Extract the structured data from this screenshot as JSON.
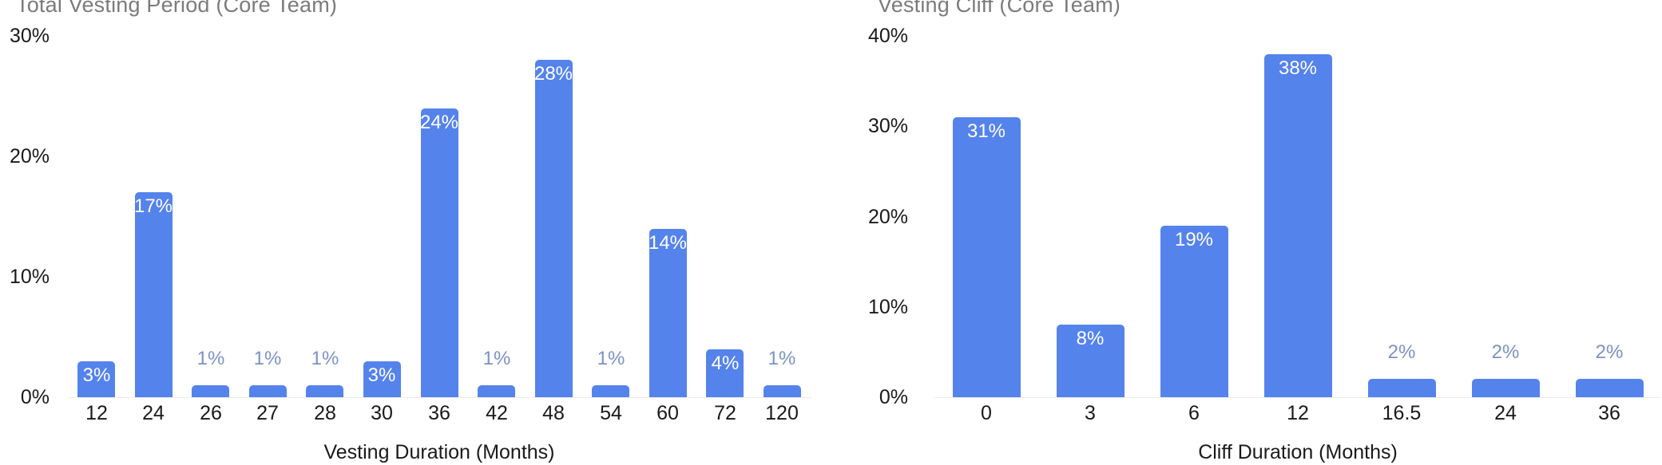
{
  "page": {
    "background": "#ffffff"
  },
  "chart_data": [
    {
      "type": "bar",
      "title": "Total Vesting Period (Core Team)",
      "xlabel": "Vesting Duration (Months)",
      "ylabel": "",
      "categories": [
        "12",
        "24",
        "26",
        "27",
        "28",
        "30",
        "36",
        "42",
        "48",
        "54",
        "60",
        "72",
        "120"
      ],
      "values": [
        3,
        17,
        1,
        1,
        1,
        3,
        24,
        1,
        28,
        1,
        14,
        4,
        1
      ],
      "value_labels": [
        "3%",
        "17%",
        "1%",
        "1%",
        "1%",
        "3%",
        "24%",
        "1%",
        "28%",
        "1%",
        "14%",
        "4%",
        "1%"
      ],
      "yticks": [
        "0%",
        "10%",
        "20%",
        "30%"
      ],
      "ytick_values": [
        0,
        10,
        20,
        30
      ],
      "ylim": [
        0,
        30
      ],
      "grid": false,
      "legend": "none",
      "bar_color": "#5583ec",
      "label_inside_color": "#ffffff",
      "label_outside_color": "#7c91c6"
    },
    {
      "type": "bar",
      "title": "Vesting Cliff (Core Team)",
      "xlabel": "Cliff Duration (Months)",
      "ylabel": "",
      "categories": [
        "0",
        "3",
        "6",
        "12",
        "16.5",
        "24",
        "36"
      ],
      "values": [
        31,
        8,
        19,
        38,
        2,
        2,
        2
      ],
      "value_labels": [
        "31%",
        "8%",
        "19%",
        "38%",
        "2%",
        "2%",
        "2%"
      ],
      "yticks": [
        "0%",
        "10%",
        "20%",
        "30%",
        "40%"
      ],
      "ytick_values": [
        0,
        10,
        20,
        30,
        40
      ],
      "ylim": [
        0,
        40
      ],
      "grid": false,
      "legend": "none",
      "bar_color": "#5583ec",
      "label_inside_color": "#ffffff",
      "label_outside_color": "#7c91c6"
    }
  ]
}
